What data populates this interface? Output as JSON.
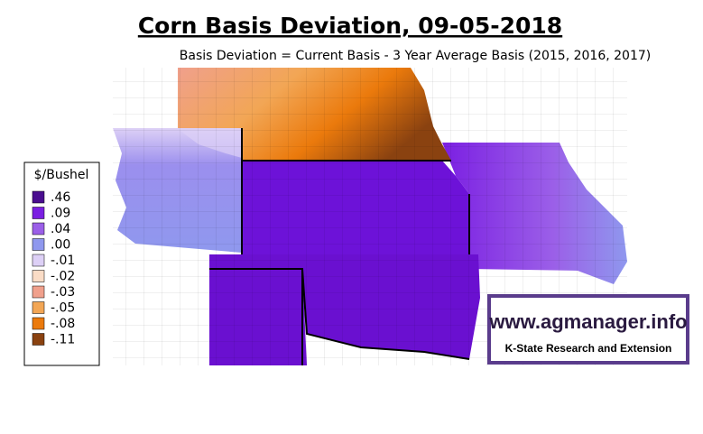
{
  "title": "Corn Basis Deviation, 09-05-2018",
  "subtitle": "Basis Deviation = Current Basis - 3 Year Average Basis (2015, 2016, 2017)",
  "legend": {
    "title": "$/Bushel",
    "items": [
      {
        "label": ".46",
        "color": "#4a0e8f"
      },
      {
        "label": ".09",
        "color": "#7b1fe2"
      },
      {
        "label": ".04",
        "color": "#9b5fe8"
      },
      {
        "label": ".00",
        "color": "#8f98ee"
      },
      {
        "label": "-.01",
        "color": "#ddd0f6"
      },
      {
        "label": "-.02",
        "color": "#fadcc6"
      },
      {
        "label": "-.03",
        "color": "#f0a08c"
      },
      {
        "label": "-.05",
        "color": "#f2a655"
      },
      {
        "label": "-.08",
        "color": "#eb7a0c"
      },
      {
        "label": "-.11",
        "color": "#8a4210"
      }
    ]
  },
  "logo": {
    "url": "www.agmanager.info",
    "org": "K-State Research and Extension"
  }
}
